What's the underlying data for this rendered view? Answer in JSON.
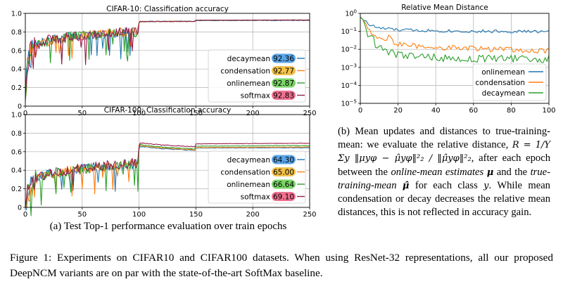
{
  "colors": {
    "decaymean": "#1f77b4",
    "condensation": "#ff7f0e",
    "onlinemean": "#2ca02c",
    "softmax": "#9b1b4b",
    "badge_decaymean": "#5aa3e6",
    "badge_condensation": "#f2c14a",
    "badge_onlinemean": "#7ad466",
    "badge_softmax": "#f07090"
  },
  "chart_data": [
    {
      "id": "cifar10",
      "type": "line",
      "title": "CIFAR-10: Classification accuracy",
      "xlim": [
        0,
        250
      ],
      "ylim": [
        0,
        1.0
      ],
      "x_ticks": [
        "0",
        "50",
        "100",
        "150",
        "200",
        "250"
      ],
      "y_ticks": [
        "0",
        "0.2",
        "0.4",
        "0.6",
        "0.8",
        "1.0"
      ],
      "grid": true,
      "legend_position": "lower right",
      "series": [
        {
          "name": "decaymean",
          "badge": "92.36",
          "profile": [
            [
              0,
              0.13
            ],
            [
              2,
              0.45
            ],
            [
              5,
              0.58
            ],
            [
              10,
              0.66
            ],
            [
              20,
              0.7
            ],
            [
              40,
              0.75
            ],
            [
              60,
              0.77
            ],
            [
              80,
              0.79
            ],
            [
              99,
              0.8
            ],
            [
              100,
              0.9
            ],
            [
              101,
              0.912
            ],
            [
              149,
              0.914
            ],
            [
              150,
              0.922
            ],
            [
              250,
              0.924
            ]
          ]
        },
        {
          "name": "condensation",
          "badge": "92.77",
          "profile": [
            [
              0,
              0.12
            ],
            [
              2,
              0.44
            ],
            [
              5,
              0.57
            ],
            [
              10,
              0.65
            ],
            [
              20,
              0.7
            ],
            [
              40,
              0.75
            ],
            [
              60,
              0.77
            ],
            [
              80,
              0.79
            ],
            [
              99,
              0.8
            ],
            [
              100,
              0.9
            ],
            [
              101,
              0.912
            ],
            [
              149,
              0.914
            ],
            [
              150,
              0.925
            ],
            [
              250,
              0.928
            ]
          ]
        },
        {
          "name": "onlinemean",
          "badge": "92.87",
          "profile": [
            [
              0,
              0.1
            ],
            [
              2,
              0.42
            ],
            [
              5,
              0.56
            ],
            [
              10,
              0.65
            ],
            [
              20,
              0.7
            ],
            [
              40,
              0.75
            ],
            [
              60,
              0.77
            ],
            [
              80,
              0.79
            ],
            [
              99,
              0.8
            ],
            [
              100,
              0.9
            ],
            [
              101,
              0.912
            ],
            [
              149,
              0.914
            ],
            [
              150,
              0.926
            ],
            [
              250,
              0.929
            ]
          ]
        },
        {
          "name": "softmax",
          "badge": "92.83",
          "profile": [
            [
              0,
              0.15
            ],
            [
              2,
              0.47
            ],
            [
              5,
              0.59
            ],
            [
              10,
              0.66
            ],
            [
              20,
              0.71
            ],
            [
              40,
              0.75
            ],
            [
              60,
              0.77
            ],
            [
              80,
              0.79
            ],
            [
              99,
              0.8
            ],
            [
              100,
              0.9
            ],
            [
              101,
              0.912
            ],
            [
              149,
              0.914
            ],
            [
              150,
              0.926
            ],
            [
              250,
              0.928
            ]
          ]
        }
      ]
    },
    {
      "id": "cifar100",
      "type": "line",
      "title": "CIFAR-100: Classification accuracy",
      "xlim": [
        0,
        250
      ],
      "ylim": [
        0,
        1.0
      ],
      "x_ticks": [
        "0",
        "50",
        "100",
        "150",
        "200",
        "250"
      ],
      "y_ticks": [
        "0",
        "0.2",
        "0.4",
        "0.6",
        "0.8",
        "1.0"
      ],
      "grid": true,
      "legend_position": "lower right",
      "series": [
        {
          "name": "decaymean",
          "badge": "64.30",
          "profile": [
            [
              0,
              0.03
            ],
            [
              2,
              0.12
            ],
            [
              5,
              0.22
            ],
            [
              10,
              0.3
            ],
            [
              20,
              0.36
            ],
            [
              40,
              0.4
            ],
            [
              60,
              0.43
            ],
            [
              80,
              0.45
            ],
            [
              99,
              0.47
            ],
            [
              100,
              0.63
            ],
            [
              101,
              0.655
            ],
            [
              120,
              0.632
            ],
            [
              149,
              0.615
            ],
            [
              150,
              0.64
            ],
            [
              250,
              0.643
            ]
          ]
        },
        {
          "name": "condensation",
          "badge": "65.00",
          "profile": [
            [
              0,
              0.03
            ],
            [
              2,
              0.12
            ],
            [
              5,
              0.22
            ],
            [
              10,
              0.3
            ],
            [
              20,
              0.36
            ],
            [
              40,
              0.4
            ],
            [
              60,
              0.43
            ],
            [
              80,
              0.45
            ],
            [
              99,
              0.47
            ],
            [
              100,
              0.64
            ],
            [
              101,
              0.665
            ],
            [
              120,
              0.64
            ],
            [
              149,
              0.62
            ],
            [
              150,
              0.645
            ],
            [
              250,
              0.65
            ]
          ]
        },
        {
          "name": "onlinemean",
          "badge": "66.64",
          "profile": [
            [
              0,
              0.03
            ],
            [
              2,
              0.12
            ],
            [
              5,
              0.22
            ],
            [
              10,
              0.3
            ],
            [
              20,
              0.36
            ],
            [
              40,
              0.4
            ],
            [
              60,
              0.43
            ],
            [
              80,
              0.45
            ],
            [
              99,
              0.47
            ],
            [
              100,
              0.65
            ],
            [
              101,
              0.675
            ],
            [
              120,
              0.65
            ],
            [
              149,
              0.63
            ],
            [
              150,
              0.66
            ],
            [
              250,
              0.666
            ]
          ]
        },
        {
          "name": "softmax",
          "badge": "69.10",
          "profile": [
            [
              0,
              0.03
            ],
            [
              2,
              0.13
            ],
            [
              5,
              0.23
            ],
            [
              10,
              0.31
            ],
            [
              20,
              0.37
            ],
            [
              40,
              0.41
            ],
            [
              60,
              0.44
            ],
            [
              80,
              0.46
            ],
            [
              99,
              0.48
            ],
            [
              100,
              0.67
            ],
            [
              101,
              0.695
            ],
            [
              120,
              0.672
            ],
            [
              149,
              0.655
            ],
            [
              150,
              0.685
            ],
            [
              250,
              0.691
            ]
          ]
        }
      ]
    },
    {
      "id": "relmean",
      "type": "line",
      "title": "Relative Mean Distance",
      "xlim": [
        0,
        100
      ],
      "ylim": [
        1e-05,
        1
      ],
      "yscale": "log",
      "x_ticks": [
        "0",
        "20",
        "40",
        "60",
        "80",
        "100"
      ],
      "y_ticks": [
        "10^0",
        "10^-1",
        "10^-2",
        "10^-3",
        "10^-4",
        "10^-5"
      ],
      "grid": true,
      "legend_position": "lower right",
      "series": [
        {
          "name": "onlinemean",
          "color_key": "decaymean",
          "profile": [
            [
              0,
              0.7
            ],
            [
              2,
              0.4
            ],
            [
              5,
              0.22
            ],
            [
              10,
              0.15
            ],
            [
              20,
              0.12
            ],
            [
              40,
              0.11
            ],
            [
              60,
              0.1
            ],
            [
              80,
              0.1
            ],
            [
              100,
              0.095
            ]
          ]
        },
        {
          "name": "condensation",
          "color_key": "condensation",
          "profile": [
            [
              0,
              0.7
            ],
            [
              2,
              0.35
            ],
            [
              4,
              0.12
            ],
            [
              8,
              0.05
            ],
            [
              14,
              0.03
            ],
            [
              16,
              0.06
            ],
            [
              18,
              0.02
            ],
            [
              30,
              0.015
            ],
            [
              50,
              0.012
            ],
            [
              70,
              0.01
            ],
            [
              100,
              0.008
            ]
          ]
        },
        {
          "name": "decaymean",
          "color_key": "onlinemean",
          "profile": [
            [
              0,
              0.7
            ],
            [
              2,
              0.25
            ],
            [
              4,
              0.08
            ],
            [
              8,
              0.02
            ],
            [
              14,
              0.008
            ],
            [
              20,
              0.005
            ],
            [
              30,
              0.004
            ],
            [
              50,
              0.003
            ],
            [
              70,
              0.003
            ],
            [
              100,
              0.003
            ]
          ]
        }
      ]
    }
  ],
  "captions": {
    "a": "(a) Test Top-1 performance evaluation over train epochs",
    "b_1": "(b) Mean updates and distances to true-training-mean: we evaluate the relative distance,",
    "b_formula": "R = 1/Y Σy ‖μyφ − μ̂yφ‖²₂ / ‖μ̂yφ‖²₂",
    "b_2": ", after each epoch between the",
    "b_em1": "online-mean estimates",
    "b_mu": "μ",
    "b_3": "and the",
    "b_em2": "true-training-mean",
    "b_muhat": "μ̂",
    "b_4": "for each class",
    "b_y": "y",
    "b_5": ". While mean condensation or decay decreases the relative mean distances, this is not reflected in accuracy gain.",
    "figure": "Figure 1: Experiments on CIFAR10 and CIFAR100 datasets. When using ResNet-32 representations, all our proposed DeepNCM variants are on par with the state-of-the-art SoftMax baseline."
  }
}
